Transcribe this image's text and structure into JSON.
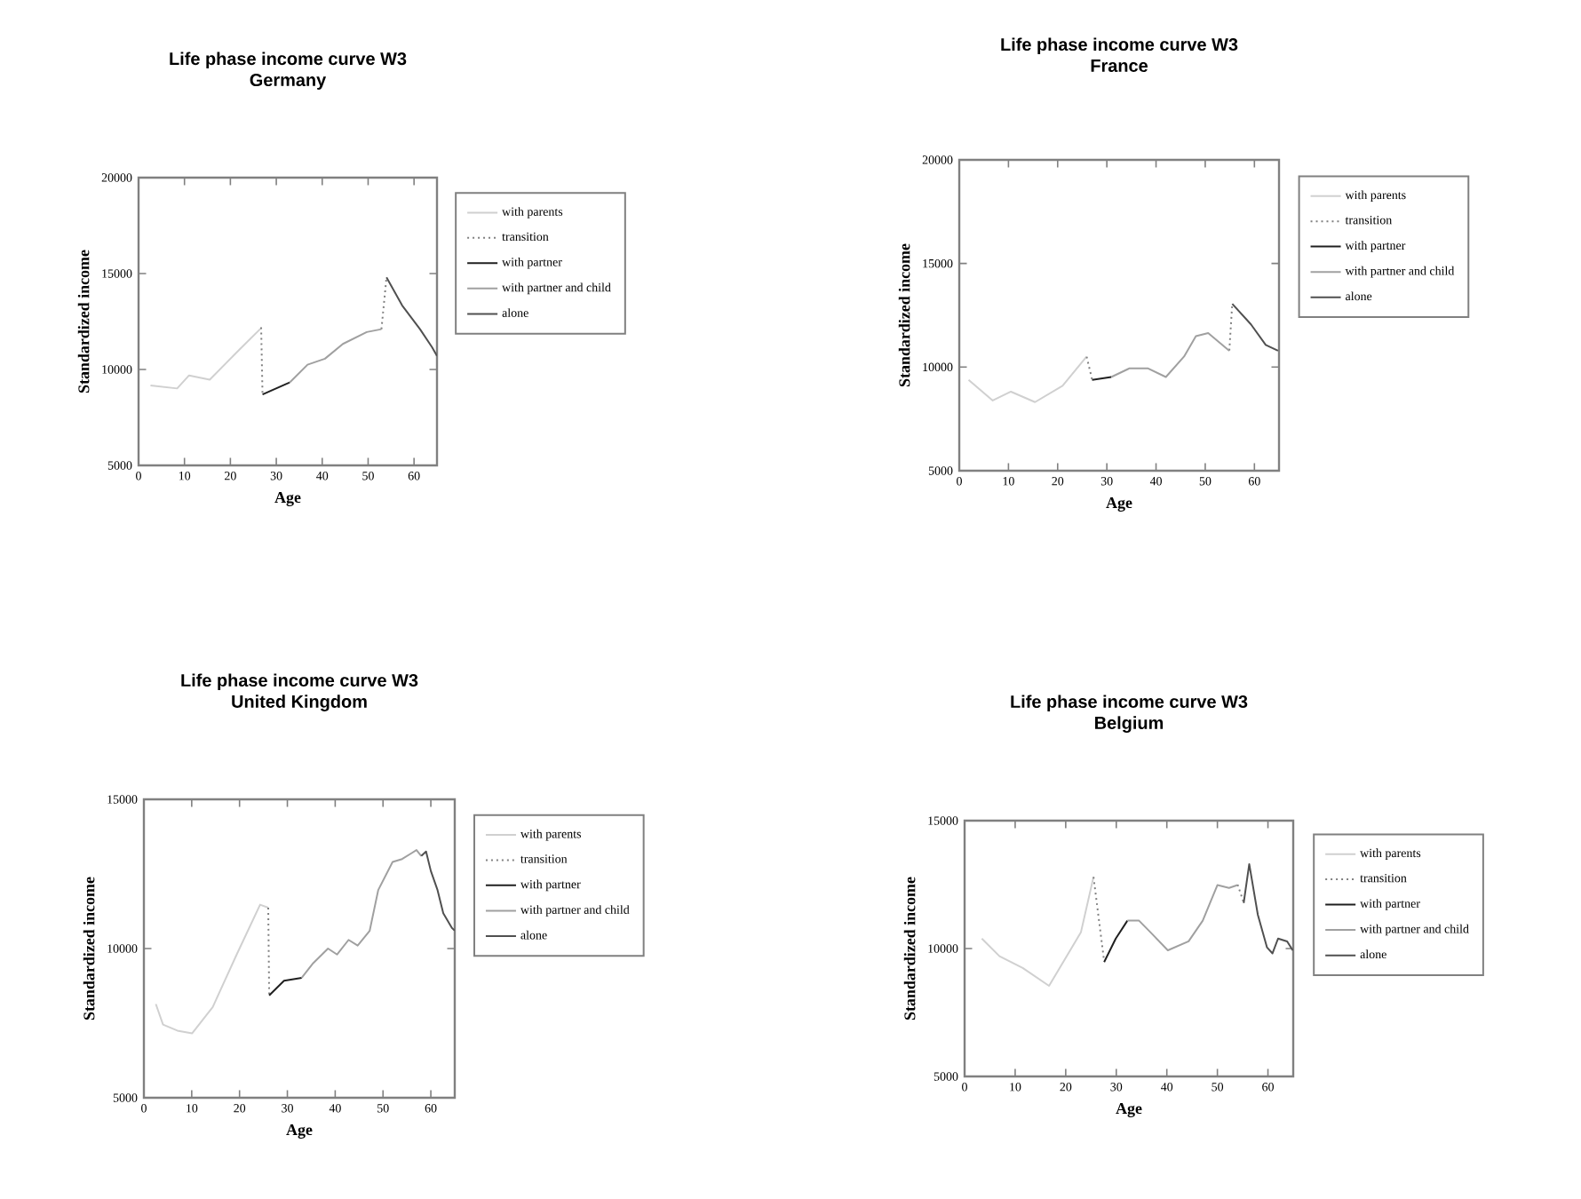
{
  "chart_data": [
    {
      "type": "line",
      "title": "Life phase income curve W3",
      "subtitle": "Germany",
      "xlabel": "Age",
      "ylabel": "Standardized income",
      "xlim": [
        0,
        65
      ],
      "xticks": [
        0,
        10,
        20,
        30,
        40,
        50,
        60
      ],
      "ylim": [
        5000,
        20000
      ],
      "yticks": [
        5000,
        10000,
        15000,
        20000
      ],
      "legend": "right",
      "series": [
        {
          "name": "with parents",
          "color": "#d0d0d0",
          "x": [
            2.6,
            8.4,
            11,
            15.5,
            21.9,
            26.7
          ],
          "values": [
            9170,
            9010,
            9690,
            9470,
            11020,
            12160
          ]
        },
        {
          "name": "transition",
          "color": "#808080",
          "line_style": "dotted",
          "x": [
            26.7,
            27,
            null,
            52.9,
            54
          ],
          "values": [
            12200,
            8700,
            null,
            12100,
            14800
          ]
        },
        {
          "name": "with partner",
          "color": "#202020",
          "x": [
            27,
            32.9
          ],
          "values": [
            8700,
            9320
          ]
        },
        {
          "name": "with partner and child",
          "color": "#a0a0a0",
          "x": [
            32.9,
            36.8,
            40.6,
            44.5,
            49.7,
            52.9
          ],
          "values": [
            9320,
            10250,
            10560,
            11330,
            11950,
            12100
          ]
        },
        {
          "name": "alone",
          "color": "#505050",
          "x": [
            54,
            57.4,
            61.3,
            63.9,
            65
          ],
          "values": [
            14800,
            13340,
            12100,
            11170,
            10700
          ]
        }
      ]
    },
    {
      "type": "line",
      "title": "Life phase income curve W3",
      "subtitle": "France",
      "xlabel": "Age",
      "ylabel": "Standardized income",
      "xlim": [
        0,
        65
      ],
      "xticks": [
        0,
        10,
        20,
        30,
        40,
        50,
        60
      ],
      "ylim": [
        5000,
        20000
      ],
      "yticks": [
        5000,
        10000,
        15000,
        20000
      ],
      "legend": "right",
      "series": [
        {
          "name": "with parents",
          "color": "#d0d0d0",
          "x": [
            1.9,
            6.8,
            10.5,
            15.4,
            21,
            25.9
          ],
          "values": [
            9380,
            8390,
            8815,
            8310,
            9100,
            10510
          ]
        },
        {
          "name": "transition",
          "color": "#808080",
          "line_style": "dotted",
          "x": [
            25.9,
            27,
            null,
            54.9,
            55.5
          ],
          "values": [
            10500,
            9400,
            null,
            10800,
            13100
          ]
        },
        {
          "name": "with partner",
          "color": "#202020",
          "x": [
            27,
            30.9
          ],
          "values": [
            9380,
            9520
          ]
        },
        {
          "name": "with partner and child",
          "color": "#a0a0a0",
          "x": [
            30.9,
            34.6,
            38.3,
            42,
            45.7,
            48.1,
            50.6,
            54.9
          ],
          "values": [
            9520,
            9940,
            9940,
            9520,
            10510,
            11490,
            11640,
            10790
          ]
        },
        {
          "name": "alone",
          "color": "#505050",
          "x": [
            55.5,
            59.3,
            62.3,
            64.8
          ],
          "values": [
            13050,
            12060,
            11070,
            10790
          ]
        }
      ]
    },
    {
      "type": "line",
      "title": "Life phase income curve W3",
      "subtitle": "United Kingdom",
      "xlabel": "Age",
      "ylabel": "Standardized income",
      "xlim": [
        0,
        65
      ],
      "xticks": [
        0,
        10,
        20,
        30,
        40,
        50,
        60
      ],
      "ylim": [
        5000,
        15000
      ],
      "yticks": [
        5000,
        10000,
        15000
      ],
      "legend": "right",
      "series": [
        {
          "name": "with parents",
          "color": "#d0d0d0",
          "x": [
            2.5,
            4,
            7,
            10.1,
            14.4,
            19.4,
            24.3,
            26
          ],
          "values": [
            8140,
            7450,
            7250,
            7160,
            8040,
            9800,
            11470,
            11370
          ]
        },
        {
          "name": "transition",
          "color": "#808080",
          "line_style": "dotted",
          "x": [
            26,
            26.2
          ],
          "values": [
            11370,
            8430
          ]
        },
        {
          "name": "with partner",
          "color": "#202020",
          "x": [
            26.2,
            29.3,
            33
          ],
          "values": [
            8430,
            8920,
            9020
          ]
        },
        {
          "name": "with partner and child",
          "color": "#a0a0a0",
          "x": [
            33,
            35.4,
            38.5,
            40.4,
            42.8,
            44.7,
            47.2,
            49,
            52,
            54,
            56,
            57,
            58
          ],
          "values": [
            9020,
            9510,
            10000,
            9800,
            10290,
            10100,
            10590,
            11960,
            12900,
            13000,
            13200,
            13300,
            13100
          ]
        },
        {
          "name": "alone",
          "color": "#505050",
          "x": [
            58,
            59,
            60,
            61.4,
            62.6,
            64.4,
            65
          ],
          "values": [
            13100,
            13250,
            12600,
            11960,
            11180,
            10690,
            10600
          ]
        }
      ]
    },
    {
      "type": "line",
      "title": "Life phase income curve W3",
      "subtitle": "Belgium",
      "xlabel": "Age",
      "ylabel": "Standardized income",
      "xlim": [
        0,
        65
      ],
      "xticks": [
        0,
        10,
        20,
        30,
        40,
        50,
        60
      ],
      "ylim": [
        5000,
        15000
      ],
      "yticks": [
        5000,
        10000,
        15000
      ],
      "legend": "right",
      "series": [
        {
          "name": "with parents",
          "color": "#d0d0d0",
          "x": [
            3.4,
            6.9,
            11.5,
            16.7,
            19.5,
            23,
            25.5
          ],
          "values": [
            10390,
            9700,
            9240,
            8540,
            9470,
            10630,
            12800
          ]
        },
        {
          "name": "transition",
          "color": "#808080",
          "line_style": "dotted",
          "x": [
            25.5,
            27.6,
            null,
            54,
            55.2
          ],
          "values": [
            12800,
            9500,
            null,
            12500,
            11800
          ]
        },
        {
          "name": "with partner",
          "color": "#202020",
          "x": [
            27.6,
            29.9,
            32.2
          ],
          "values": [
            9470,
            10390,
            11090
          ]
        },
        {
          "name": "with partner and child",
          "color": "#a0a0a0",
          "x": [
            32.2,
            34.5,
            36.8,
            40.2,
            44.3,
            47.1,
            50,
            52.3,
            54
          ],
          "values": [
            11090,
            11090,
            10630,
            9930,
            10280,
            11090,
            12480,
            12370,
            12480
          ]
        },
        {
          "name": "alone",
          "color": "#505050",
          "x": [
            55.2,
            56.3,
            58,
            59.8,
            60.9,
            62,
            63.8,
            64.9
          ],
          "values": [
            11780,
            13300,
            11320,
            10050,
            9810,
            10390,
            10280,
            9930
          ]
        }
      ]
    }
  ]
}
